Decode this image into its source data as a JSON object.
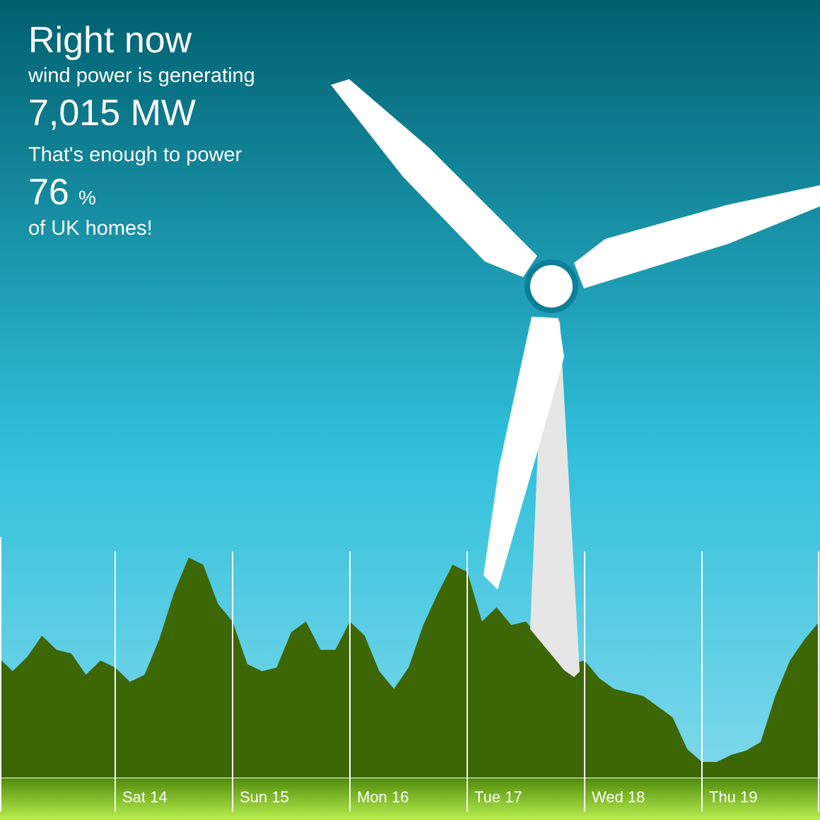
{
  "header": {
    "line1": "Right now",
    "line2": "wind power is generating",
    "power": "7,015 MW",
    "line3": "That's enough to power",
    "percent": "76",
    "percent_unit": "%",
    "line4": "of UK homes!"
  },
  "chart_data": {
    "type": "area",
    "color": "#3d6604",
    "categories": [
      null,
      null,
      null,
      null,
      null,
      null,
      null,
      null,
      "Sat 14",
      null,
      null,
      null,
      null,
      null,
      null,
      null,
      "Sun 15",
      null,
      null,
      null,
      null,
      null,
      null,
      null,
      "Mon 16",
      null,
      null,
      null,
      null,
      null,
      null,
      null,
      "Tue 17",
      null,
      null,
      null,
      null,
      null,
      null,
      null,
      "Wed 18",
      null,
      null,
      null,
      null,
      null,
      null,
      null,
      "Thu 19",
      null,
      null,
      null,
      null,
      null,
      null,
      null,
      null
    ],
    "values": [
      5440,
      4800,
      5440,
      6400,
      5760,
      5600,
      4640,
      5280,
      4960,
      4320,
      4640,
      6240,
      8320,
      9920,
      9600,
      7840,
      7040,
      5120,
      4800,
      4960,
      6560,
      7040,
      5760,
      5760,
      7040,
      6400,
      4800,
      4000,
      4960,
      6880,
      8320,
      9600,
      9280,
      7040,
      7680,
      6880,
      7040,
      6240,
      5600,
      5120,
      5280,
      4480,
      4000,
      3840,
      3680,
      3200,
      2720,
      1280,
      704,
      704,
      1024,
      1216,
      1600,
      3680,
      5280,
      6240,
      7040
    ],
    "ylim": [
      0,
      11000
    ]
  }
}
